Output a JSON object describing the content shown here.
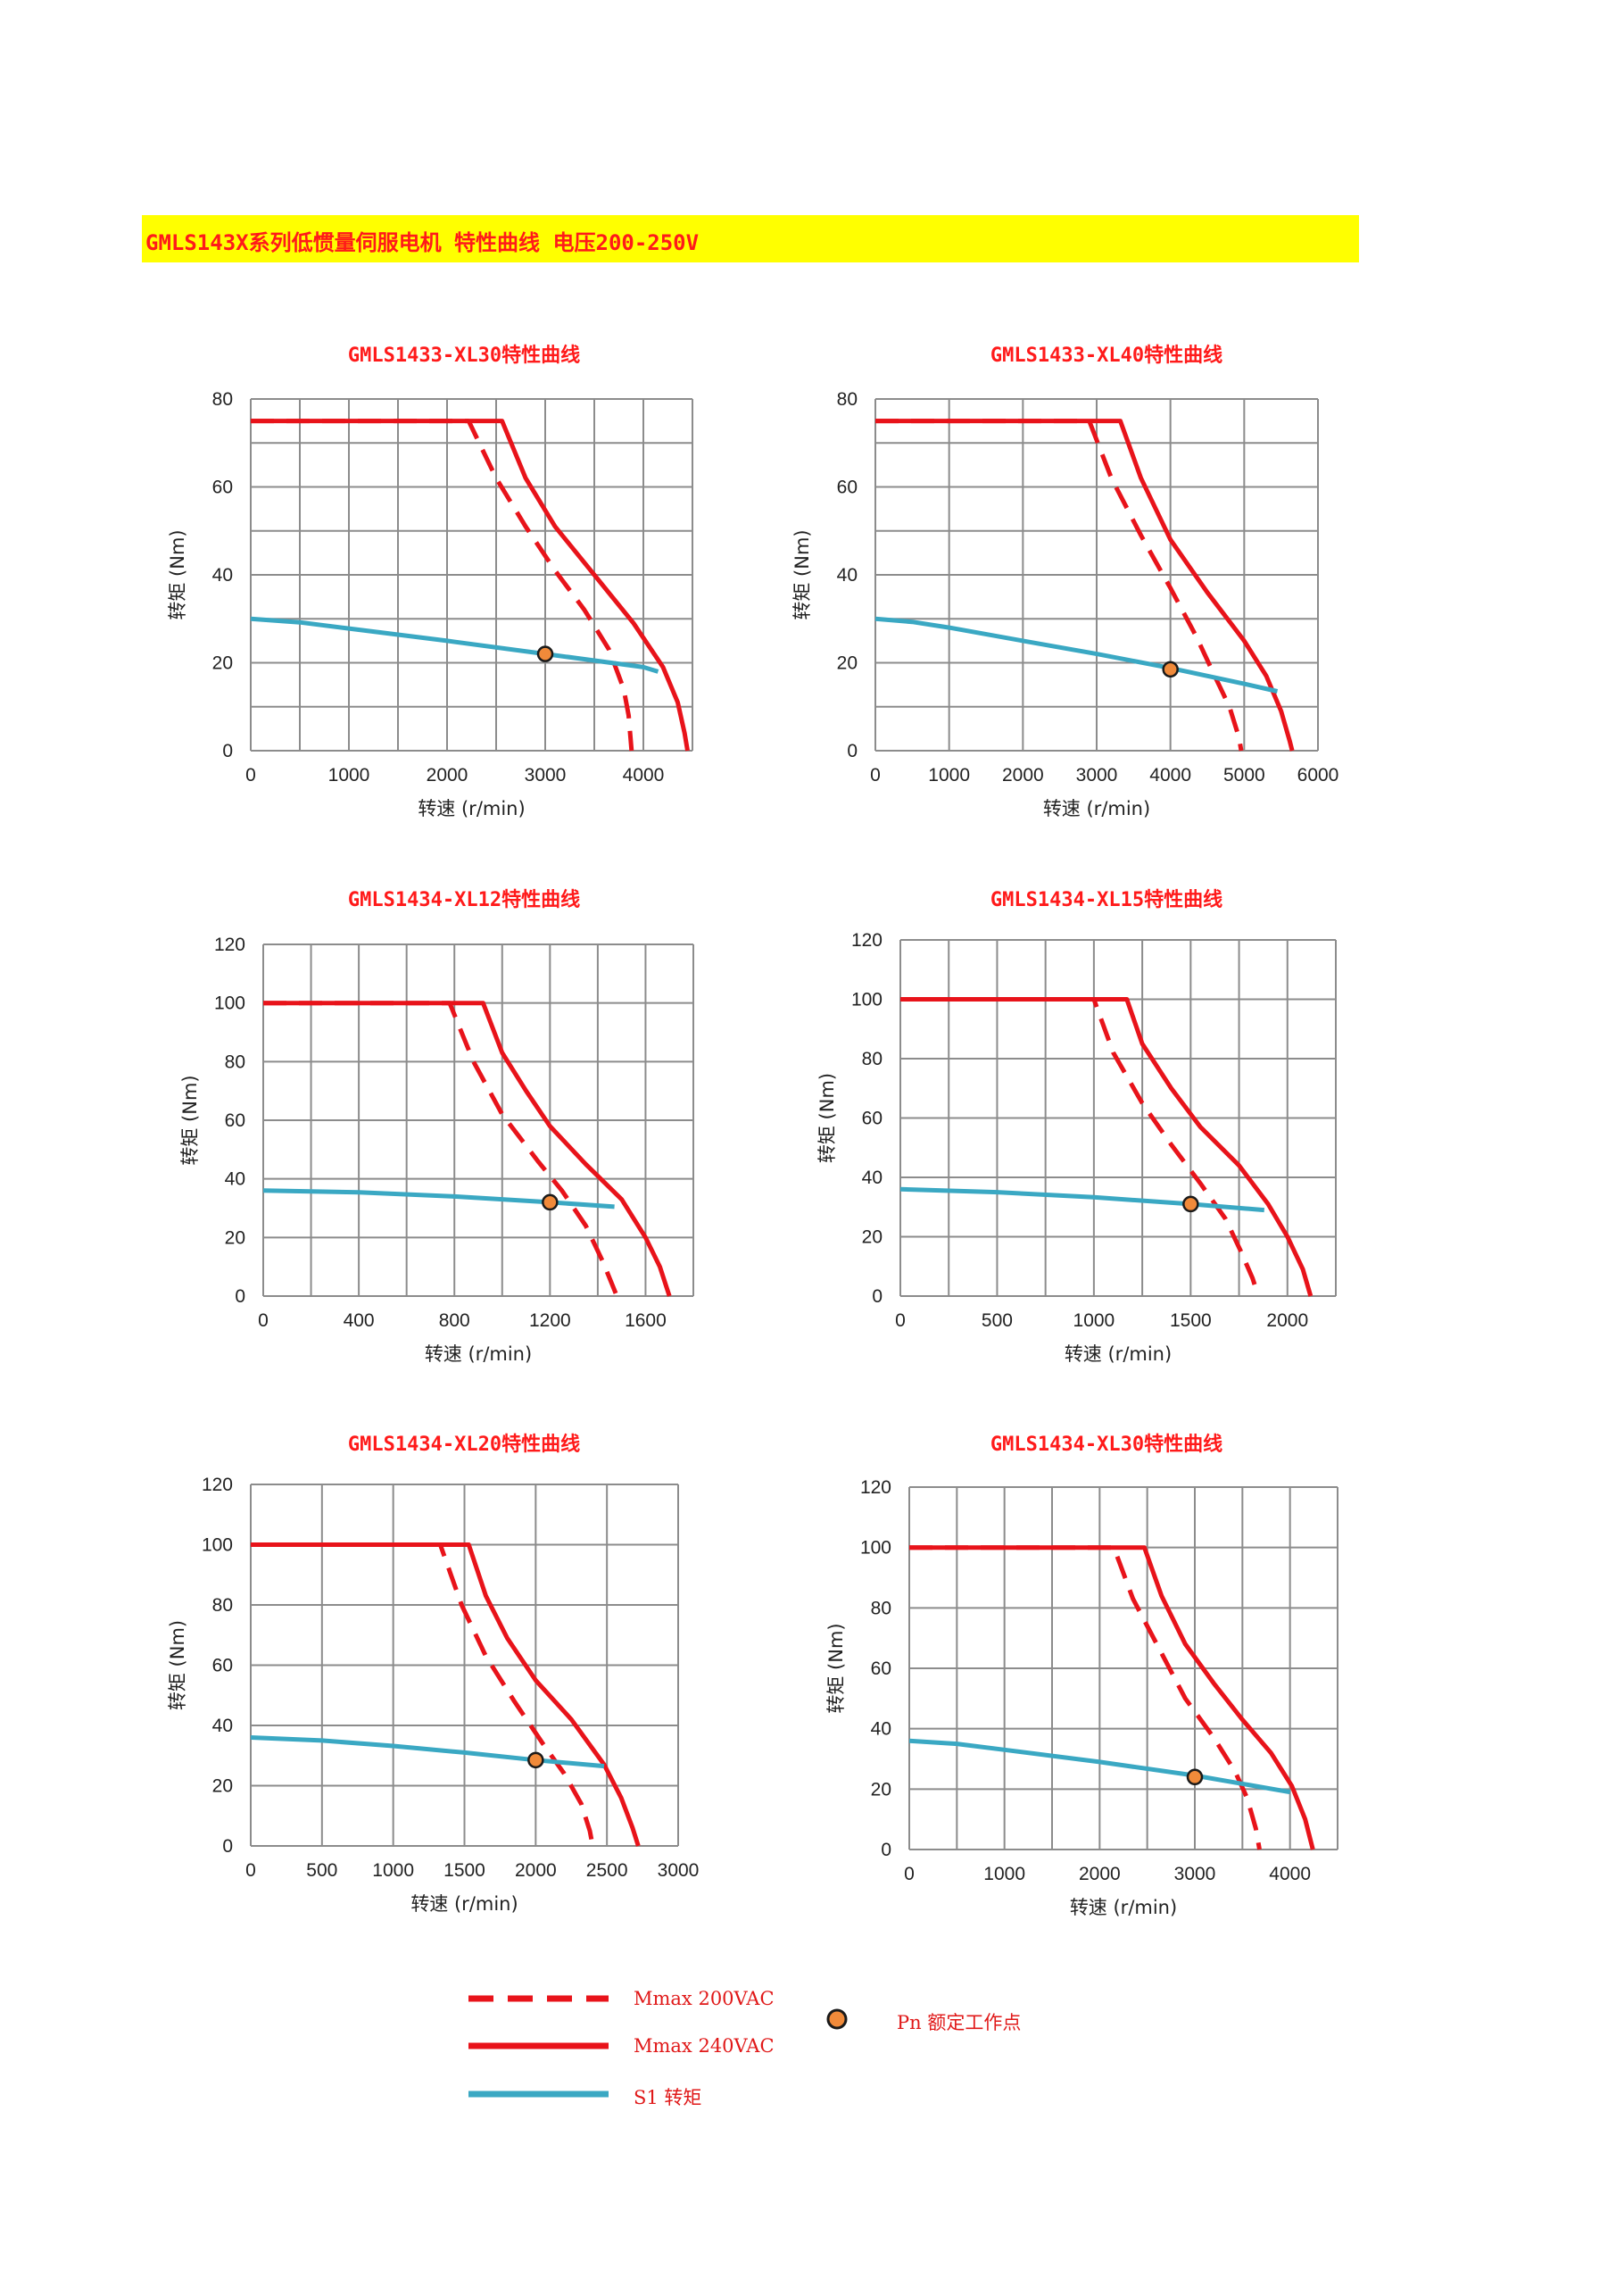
{
  "header": {
    "title": "GMLS143X系列低惯量伺服电机 特性曲线 电压200-250V"
  },
  "colors": {
    "mmax_200": "#e8131a",
    "mmax_240": "#e8131a",
    "s1": "#3aa8c3",
    "point": "#f08a3a",
    "grid": "#8c8c8c",
    "title": "#ff1a1a",
    "banner": "#ffff00"
  },
  "legend": {
    "mmax_200_label": "Mmax 200VAC",
    "mmax_240_label": "Mmax 240VAC",
    "s1_label": "S1 转矩",
    "pn_label": "Pn 额定工作点"
  },
  "chart_data": [
    {
      "type": "line",
      "title": "GMLS1433-XL30特性曲线",
      "xlabel": "转速 (r/min)",
      "ylabel": "转矩 (Nm)",
      "xlim": [
        0,
        4500
      ],
      "ylim": [
        0,
        80
      ],
      "xticks": [
        0,
        1000,
        2000,
        3000,
        4000
      ],
      "yticks": [
        0,
        20,
        40,
        60,
        80
      ],
      "x_grid": [
        0,
        500,
        1000,
        1500,
        2000,
        2500,
        3000,
        3500,
        4000,
        4500
      ],
      "y_grid": [
        0,
        10,
        20,
        30,
        40,
        50,
        60,
        70,
        80
      ],
      "series": [
        {
          "name": "Mmax 200VAC",
          "style": "dashed",
          "points": [
            [
              0,
              75
            ],
            [
              2220,
              75
            ],
            [
              2500,
              62
            ],
            [
              2800,
              51
            ],
            [
              3100,
              41
            ],
            [
              3400,
              32
            ],
            [
              3650,
              23
            ],
            [
              3800,
              14
            ],
            [
              3850,
              8
            ],
            [
              3880,
              0
            ]
          ]
        },
        {
          "name": "Mmax 240VAC",
          "style": "solid",
          "points": [
            [
              0,
              75
            ],
            [
              2560,
              75
            ],
            [
              2800,
              62
            ],
            [
              3100,
              51
            ],
            [
              3500,
              40
            ],
            [
              3900,
              29
            ],
            [
              4200,
              19
            ],
            [
              4350,
              11
            ],
            [
              4420,
              4
            ],
            [
              4450,
              0
            ]
          ]
        },
        {
          "name": "S1 转矩",
          "style": "solid",
          "points": [
            [
              0,
              30
            ],
            [
              500,
              29.2
            ],
            [
              1000,
              27.8
            ],
            [
              2000,
              25
            ],
            [
              3000,
              22
            ],
            [
              4000,
              19
            ],
            [
              4150,
              18
            ]
          ]
        }
      ],
      "rated_point": [
        3000,
        22
      ]
    },
    {
      "type": "line",
      "title": "GMLS1433-XL40特性曲线",
      "xlabel": "转速 (r/min)",
      "ylabel": "转矩 (Nm)",
      "xlim": [
        0,
        6000
      ],
      "ylim": [
        0,
        80
      ],
      "xticks": [
        0,
        1000,
        2000,
        3000,
        4000,
        5000,
        6000
      ],
      "yticks": [
        0,
        20,
        40,
        60,
        80
      ],
      "x_grid": [
        0,
        1000,
        2000,
        3000,
        4000,
        5000,
        6000
      ],
      "y_grid": [
        0,
        10,
        20,
        30,
        40,
        50,
        60,
        70,
        80
      ],
      "series": [
        {
          "name": "Mmax 200VAC",
          "style": "dashed",
          "points": [
            [
              0,
              75
            ],
            [
              2900,
              75
            ],
            [
              3200,
              62
            ],
            [
              3600,
              49
            ],
            [
              4000,
              37
            ],
            [
              4350,
              26
            ],
            [
              4600,
              17
            ],
            [
              4800,
              10
            ],
            [
              4930,
              3
            ],
            [
              4960,
              0
            ]
          ]
        },
        {
          "name": "Mmax 240VAC",
          "style": "solid",
          "points": [
            [
              0,
              75
            ],
            [
              3320,
              75
            ],
            [
              3600,
              62
            ],
            [
              4000,
              48
            ],
            [
              4500,
              36
            ],
            [
              5000,
              25
            ],
            [
              5300,
              17
            ],
            [
              5500,
              9
            ],
            [
              5620,
              2
            ],
            [
              5650,
              0
            ]
          ]
        },
        {
          "name": "S1 转矩",
          "style": "solid",
          "points": [
            [
              0,
              30
            ],
            [
              500,
              29.3
            ],
            [
              1000,
              28
            ],
            [
              2000,
              25
            ],
            [
              3000,
              22
            ],
            [
              4000,
              18.8
            ],
            [
              5000,
              15.2
            ],
            [
              5450,
              13.5
            ]
          ]
        }
      ],
      "rated_point": [
        4000,
        18.5
      ]
    },
    {
      "type": "line",
      "title": "GMLS1434-XL12特性曲线",
      "xlabel": "转速 (r/min)",
      "ylabel": "转矩 (Nm)",
      "xlim": [
        0,
        1800
      ],
      "ylim": [
        0,
        120
      ],
      "xticks": [
        0,
        400,
        800,
        1200,
        1600
      ],
      "yticks": [
        0,
        20,
        40,
        60,
        80,
        100,
        120
      ],
      "x_grid": [
        0,
        200,
        400,
        600,
        800,
        1000,
        1200,
        1400,
        1600,
        1800
      ],
      "y_grid": [
        0,
        20,
        40,
        60,
        80,
        100,
        120
      ],
      "series": [
        {
          "name": "Mmax 200VAC",
          "style": "dashed",
          "points": [
            [
              0,
              100
            ],
            [
              780,
              100
            ],
            [
              880,
              80
            ],
            [
              1000,
              62
            ],
            [
              1150,
              46
            ],
            [
              1250,
              36
            ],
            [
              1350,
              24
            ],
            [
              1420,
              12
            ],
            [
              1460,
              4
            ],
            [
              1480,
              0
            ]
          ]
        },
        {
          "name": "Mmax 240VAC",
          "style": "solid",
          "points": [
            [
              0,
              100
            ],
            [
              920,
              100
            ],
            [
              1000,
              83
            ],
            [
              1100,
              70
            ],
            [
              1200,
              58
            ],
            [
              1350,
              45
            ],
            [
              1500,
              33
            ],
            [
              1600,
              20
            ],
            [
              1660,
              10
            ],
            [
              1700,
              0
            ]
          ]
        },
        {
          "name": "S1 转矩",
          "style": "solid",
          "points": [
            [
              0,
              36
            ],
            [
              400,
              35.4
            ],
            [
              800,
              34
            ],
            [
              1200,
              32
            ],
            [
              1470,
              30.5
            ]
          ]
        }
      ],
      "rated_point": [
        1200,
        32
      ]
    },
    {
      "type": "line",
      "title": "GMLS1434-XL15特性曲线",
      "xlabel": "转速 (r/min)",
      "ylabel": "转矩 (Nm)",
      "xlim": [
        0,
        2250
      ],
      "ylim": [
        0,
        120
      ],
      "xticks": [
        0,
        500,
        1000,
        1500,
        2000
      ],
      "yticks": [
        0,
        20,
        40,
        60,
        80,
        100,
        120
      ],
      "x_grid": [
        0,
        250,
        500,
        750,
        1000,
        1250,
        1500,
        1750,
        2000,
        2250
      ],
      "y_grid": [
        0,
        20,
        40,
        60,
        80,
        100,
        120
      ],
      "series": [
        {
          "name": "Mmax 200VAC",
          "style": "dashed",
          "points": [
            [
              0,
              100
            ],
            [
              1000,
              100
            ],
            [
              1100,
              82
            ],
            [
              1250,
              65
            ],
            [
              1400,
              51
            ],
            [
              1550,
              38
            ],
            [
              1680,
              26
            ],
            [
              1760,
              15
            ],
            [
              1820,
              6
            ],
            [
              1850,
              0
            ]
          ]
        },
        {
          "name": "Mmax 240VAC",
          "style": "solid",
          "points": [
            [
              0,
              100
            ],
            [
              1170,
              100
            ],
            [
              1250,
              85
            ],
            [
              1400,
              70
            ],
            [
              1550,
              57
            ],
            [
              1750,
              44
            ],
            [
              1900,
              31
            ],
            [
              2000,
              20
            ],
            [
              2080,
              9
            ],
            [
              2120,
              0
            ]
          ]
        },
        {
          "name": "S1 转矩",
          "style": "solid",
          "points": [
            [
              0,
              36
            ],
            [
              500,
              35
            ],
            [
              1000,
              33.3
            ],
            [
              1500,
              31
            ],
            [
              1880,
              29
            ]
          ]
        }
      ],
      "rated_point": [
        1500,
        31
      ]
    },
    {
      "type": "line",
      "title": "GMLS1434-XL20特性曲线",
      "xlabel": "转速 (r/min)",
      "ylabel": "转矩 (Nm)",
      "xlim": [
        0,
        3000
      ],
      "ylim": [
        0,
        120
      ],
      "xticks": [
        0,
        500,
        1000,
        1500,
        2000,
        2500,
        3000
      ],
      "yticks": [
        0,
        20,
        40,
        60,
        80,
        100,
        120
      ],
      "x_grid": [
        0,
        500,
        1000,
        1500,
        2000,
        2500,
        3000
      ],
      "y_grid": [
        0,
        20,
        40,
        60,
        80,
        100,
        120
      ],
      "series": [
        {
          "name": "Mmax 200VAC",
          "style": "dashed",
          "points": [
            [
              0,
              100
            ],
            [
              1330,
              100
            ],
            [
              1480,
              80
            ],
            [
              1650,
              63
            ],
            [
              1850,
              48
            ],
            [
              2050,
              34
            ],
            [
              2200,
              24
            ],
            [
              2320,
              14
            ],
            [
              2380,
              5
            ],
            [
              2400,
              0
            ]
          ]
        },
        {
          "name": "Mmax 240VAC",
          "style": "solid",
          "points": [
            [
              0,
              100
            ],
            [
              1530,
              100
            ],
            [
              1650,
              83
            ],
            [
              1800,
              69
            ],
            [
              2000,
              55
            ],
            [
              2250,
              42
            ],
            [
              2480,
              27
            ],
            [
              2600,
              16
            ],
            [
              2680,
              6
            ],
            [
              2720,
              0
            ]
          ]
        },
        {
          "name": "S1 转矩",
          "style": "solid",
          "points": [
            [
              0,
              36
            ],
            [
              500,
              35
            ],
            [
              1000,
              33.2
            ],
            [
              1500,
              31
            ],
            [
              2000,
              28.5
            ],
            [
              2480,
              26.5
            ]
          ]
        }
      ],
      "rated_point": [
        2000,
        28.5
      ]
    },
    {
      "type": "line",
      "title": "GMLS1434-XL30特性曲线",
      "xlabel": "转速 (r/min)",
      "ylabel": "转矩 (Nm)",
      "xlim": [
        0,
        4500
      ],
      "ylim": [
        0,
        120
      ],
      "xticks": [
        0,
        1000,
        2000,
        3000,
        4000
      ],
      "yticks": [
        0,
        20,
        40,
        60,
        80,
        100,
        120
      ],
      "x_grid": [
        0,
        500,
        1000,
        1500,
        2000,
        2500,
        3000,
        3500,
        4000,
        4500
      ],
      "y_grid": [
        0,
        20,
        40,
        60,
        80,
        100,
        120
      ],
      "series": [
        {
          "name": "Mmax 200VAC",
          "style": "dashed",
          "points": [
            [
              0,
              100
            ],
            [
              2150,
              100
            ],
            [
              2350,
              83
            ],
            [
              2650,
              65
            ],
            [
              2900,
              50
            ],
            [
              3200,
              37
            ],
            [
              3420,
              26
            ],
            [
              3550,
              17
            ],
            [
              3640,
              7
            ],
            [
              3680,
              0
            ]
          ]
        },
        {
          "name": "Mmax 240VAC",
          "style": "solid",
          "points": [
            [
              0,
              100
            ],
            [
              2470,
              100
            ],
            [
              2650,
              84
            ],
            [
              2900,
              68
            ],
            [
              3200,
              55
            ],
            [
              3500,
              43
            ],
            [
              3800,
              32
            ],
            [
              4020,
              21
            ],
            [
              4160,
              10
            ],
            [
              4240,
              0
            ]
          ]
        },
        {
          "name": "S1 转矩",
          "style": "solid",
          "points": [
            [
              0,
              36
            ],
            [
              500,
              35
            ],
            [
              1000,
              33
            ],
            [
              2000,
              29
            ],
            [
              3000,
              24.5
            ],
            [
              4000,
              19
            ]
          ]
        }
      ],
      "rated_point": [
        3000,
        24
      ]
    }
  ]
}
